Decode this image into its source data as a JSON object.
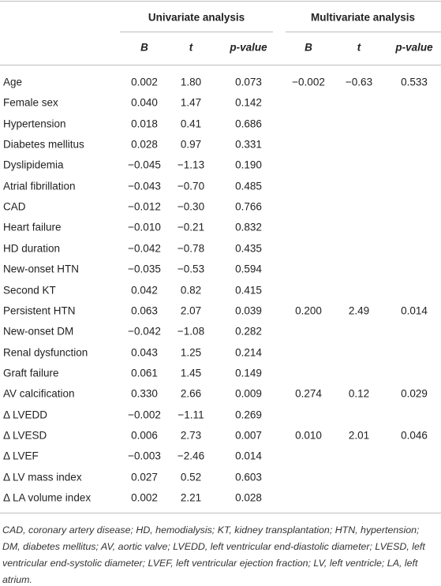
{
  "table": {
    "groups": [
      "Univariate analysis",
      "Multivariate analysis"
    ],
    "columns": [
      "B",
      "t",
      "p-value",
      "B",
      "t",
      "p-value"
    ],
    "rows": [
      [
        "Age",
        "0.002",
        "1.80",
        "0.073",
        "−0.002",
        "−0.63",
        "0.533"
      ],
      [
        "Female sex",
        "0.040",
        "1.47",
        "0.142"
      ],
      [
        "Hypertension",
        "0.018",
        "0.41",
        "0.686"
      ],
      [
        "Diabetes mellitus",
        "0.028",
        "0.97",
        "0.331"
      ],
      [
        "Dyslipidemia",
        "−0.045",
        "−1.13",
        "0.190"
      ],
      [
        "Atrial fibrillation",
        "−0.043",
        "−0.70",
        "0.485"
      ],
      [
        "CAD",
        "−0.012",
        "−0.30",
        "0.766"
      ],
      [
        "Heart failure",
        "−0.010",
        "−0.21",
        "0.832"
      ],
      [
        "HD duration",
        "−0.042",
        "−0.78",
        "0.435"
      ],
      [
        "New-onset HTN",
        "−0.035",
        "−0.53",
        "0.594"
      ],
      [
        "Second KT",
        "0.042",
        "0.82",
        "0.415"
      ],
      [
        "Persistent HTN",
        "0.063",
        "2.07",
        "0.039",
        "0.200",
        "2.49",
        "0.014"
      ],
      [
        "New-onset DM",
        "−0.042",
        "−1.08",
        "0.282"
      ],
      [
        "Renal dysfunction",
        "0.043",
        "1.25",
        "0.214"
      ],
      [
        "Graft failure",
        "0.061",
        "1.45",
        "0.149"
      ],
      [
        "AV calcification",
        "0.330",
        "2.66",
        "0.009",
        "0.274",
        "0.12",
        "0.029"
      ],
      [
        "Δ LVEDD",
        "−0.002",
        "−1.11",
        "0.269"
      ],
      [
        "Δ LVESD",
        "0.006",
        "2.73",
        "0.007",
        "0.010",
        "2.01",
        "0.046"
      ],
      [
        "Δ LVEF",
        "−0.003",
        "−2.46",
        "0.014"
      ],
      [
        "Δ LV mass index",
        "0.027",
        "0.52",
        "0.603"
      ],
      [
        "Δ LA volume index",
        "0.002",
        "2.21",
        "0.028"
      ]
    ],
    "footnote": "CAD, coronary artery disease; HD, hemodialysis; KT, kidney transplantation; HTN, hypertension; DM, diabetes mellitus; AV, aortic valve; LVEDD, left ventricular end-diastolic diameter; LVESD, left ventricular end-systolic diameter; LVEF, left ventricular ejection fraction; LV, left ventricle; LA, left atrium."
  }
}
